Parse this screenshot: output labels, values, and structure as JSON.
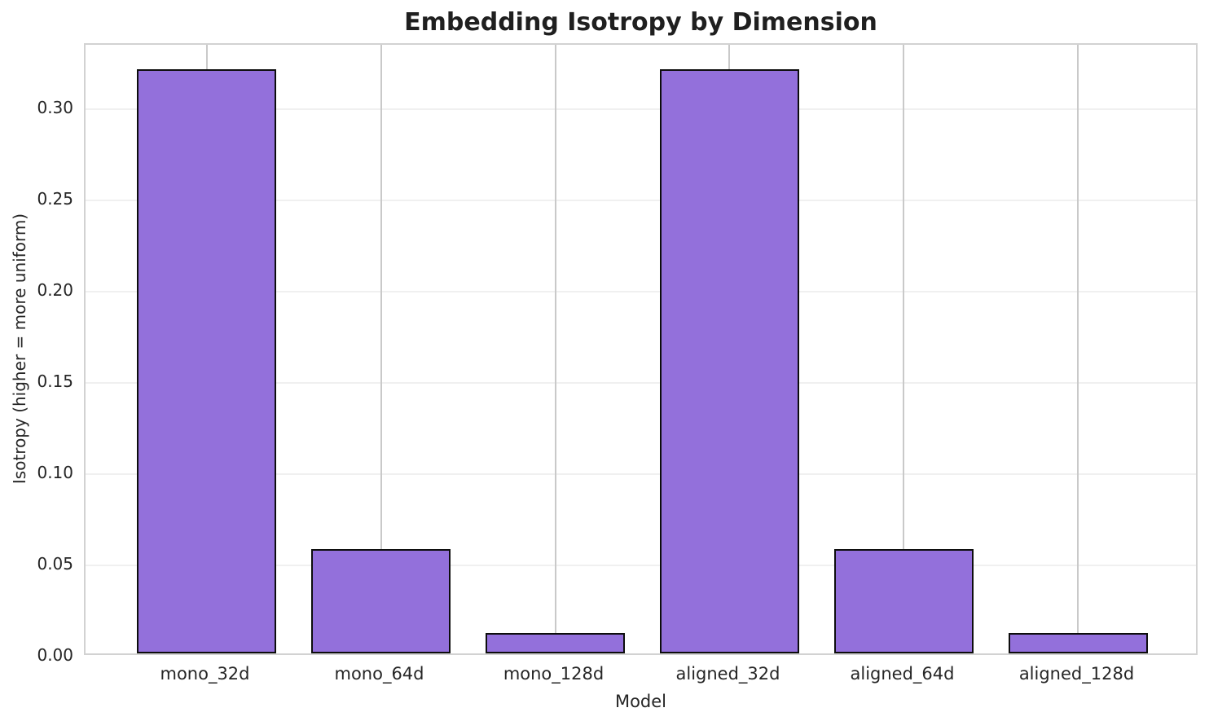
{
  "chart_data": {
    "type": "bar",
    "title": "Embedding Isotropy by Dimension",
    "xlabel": "Model",
    "ylabel": "Isotropy (higher = more uniform)",
    "categories": [
      "mono_32d",
      "mono_64d",
      "mono_128d",
      "aligned_32d",
      "aligned_64d",
      "aligned_128d"
    ],
    "values": [
      0.32,
      0.057,
      0.011,
      0.32,
      0.057,
      0.011
    ],
    "ytick_labels": [
      "0.00",
      "0.05",
      "0.10",
      "0.15",
      "0.20",
      "0.25",
      "0.30"
    ],
    "yticks": [
      0,
      0.05,
      0.1,
      0.15,
      0.2,
      0.25,
      0.3
    ],
    "ylim": [
      0,
      0.3353
    ],
    "xlim": [
      -0.694,
      5.694
    ],
    "bar_width": 0.8,
    "grid": "both",
    "legend": "none"
  },
  "palette": {
    "bar_fill": "#9370DB",
    "bar_edge": "#0d0d0d",
    "grid_h": "#f0f0f0",
    "grid_v": "#c9c9c9",
    "spine": "#d2d2d2",
    "text": "#262626",
    "title": "#1f1f1f",
    "background": "#ffffff"
  }
}
